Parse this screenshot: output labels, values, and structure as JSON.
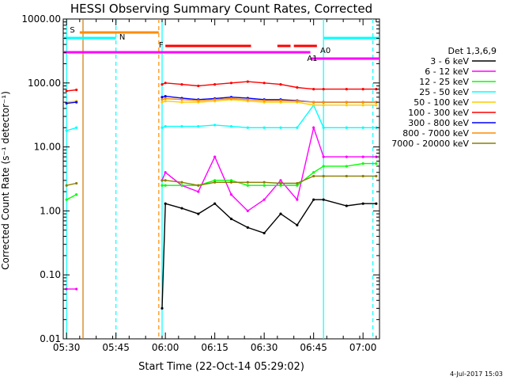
{
  "chart_data": {
    "type": "line",
    "title": "HESSI Observing Summary Count Rates, Corrected",
    "xlabel": "Start Time (22-Oct-14 05:29:02)",
    "ylabel": "Corrected Count Rate (s⁻¹ detector⁻¹)",
    "y_scale": "log",
    "ylim": [
      0.01,
      1000
    ],
    "xlim": [
      "05:29",
      "07:05"
    ],
    "x_tick_labels": [
      "05:30",
      "05:45",
      "06:00",
      "06:15",
      "06:30",
      "06:45",
      "07:00"
    ],
    "y_tick_labels": [
      "0.01",
      "0.10",
      "1.00",
      "10.00",
      "100.00",
      "1000.00"
    ],
    "legend_title": "Det 1,3,6,9",
    "legend_placement": "right",
    "x_values": [
      "05:30",
      "05:33",
      "05:35",
      "05:59",
      "06:00",
      "06:05",
      "06:10",
      "06:15",
      "06:20",
      "06:25",
      "06:30",
      "06:35",
      "06:40",
      "06:45",
      "06:48",
      "06:55",
      "07:00",
      "07:04"
    ],
    "series": [
      {
        "name": "3 - 6 keV",
        "color": "#000000",
        "values": [
          null,
          null,
          null,
          0.03,
          1.3,
          1.1,
          0.9,
          1.3,
          0.75,
          0.55,
          0.45,
          0.9,
          0.6,
          1.5,
          1.5,
          1.2,
          1.3,
          1.3
        ]
      },
      {
        "name": "6 - 12 keV",
        "color": "#ff00ff",
        "values": [
          0.06,
          0.06,
          null,
          3.0,
          4.0,
          2.5,
          2.0,
          7.0,
          1.8,
          1.0,
          1.5,
          3.0,
          1.5,
          20,
          7,
          7,
          7,
          7
        ]
      },
      {
        "name": "12 - 25 keV",
        "color": "#00ff00",
        "values": [
          1.5,
          1.8,
          null,
          2.5,
          2.5,
          2.5,
          2.5,
          3.0,
          3.0,
          2.5,
          2.5,
          2.5,
          2.5,
          4,
          5,
          5,
          5.5,
          5.5
        ]
      },
      {
        "name": "25 - 50 keV",
        "color": "#00ffff",
        "values": [
          18,
          20,
          null,
          20,
          21,
          21,
          21,
          22,
          21,
          20,
          20,
          20,
          20,
          45,
          20,
          20,
          20,
          20
        ]
      },
      {
        "name": "50 - 100 keV",
        "color": "#ffcc00",
        "values": [
          50,
          52,
          null,
          50,
          52,
          50,
          50,
          52,
          55,
          52,
          50,
          50,
          50,
          45,
          45,
          45,
          45,
          45
        ]
      },
      {
        "name": "100 - 300 keV",
        "color": "#ff0000",
        "values": [
          75,
          78,
          null,
          95,
          100,
          95,
          90,
          95,
          100,
          105,
          100,
          95,
          85,
          80,
          80,
          80,
          80,
          80
        ]
      },
      {
        "name": "300 - 800 keV",
        "color": "#0000ff",
        "values": [
          48,
          50,
          null,
          60,
          62,
          58,
          55,
          57,
          60,
          58,
          55,
          55,
          53,
          50,
          50,
          50,
          50,
          50
        ]
      },
      {
        "name": "800 - 7000 keV",
        "color": "#ff8c00",
        "values": [
          null,
          null,
          null,
          55,
          57,
          55,
          53,
          55,
          57,
          55,
          53,
          53,
          52,
          50,
          50,
          50,
          50,
          50
        ]
      },
      {
        "name": "7000 - 20000 keV",
        "color": "#8b7d00",
        "values": [
          2.5,
          2.7,
          null,
          3.0,
          3.0,
          2.8,
          2.5,
          2.8,
          2.8,
          2.8,
          2.8,
          2.7,
          2.7,
          3.5,
          3.5,
          3.5,
          3.5,
          3.5
        ]
      }
    ],
    "annotations": {
      "flag_labels": [
        "S",
        "N",
        "F",
        "A0",
        "A1"
      ],
      "timestamp": "4-Jul-2017 15:03"
    },
    "grid": false
  }
}
